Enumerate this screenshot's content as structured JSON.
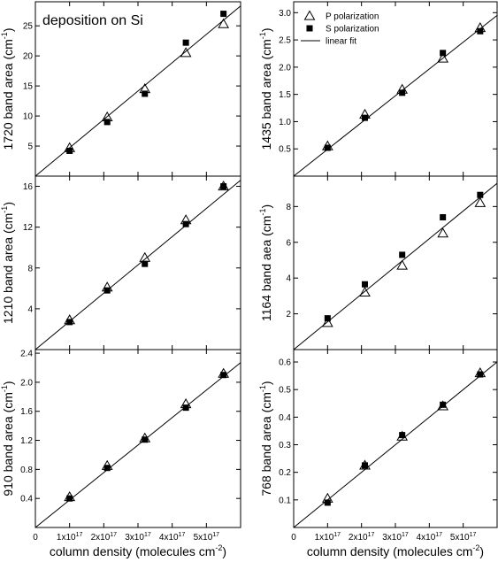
{
  "chart_data": [
    {
      "type": "scatter",
      "id": "p1720",
      "col": 0,
      "row": 0,
      "ylabel": "1720 band area (cm",
      "ylabel_sup": "-1",
      "ylabel_close": ")",
      "ylim": [
        0,
        29
      ],
      "xlim": [
        0,
        6e+17
      ],
      "yticks": [
        5,
        10,
        15,
        20,
        25
      ],
      "ytick_labels": [
        "5",
        "10",
        "15",
        "20",
        "25"
      ],
      "annotation": "deposition on Si",
      "fit": [
        [
          0,
          0
        ],
        [
          6e+17,
          28.3
        ]
      ],
      "series": [
        {
          "name": "P polarization",
          "marker": "triangle-open",
          "x": [
            1e+17,
            2.1e+17,
            3.2e+17,
            4.4e+17,
            5.5e+17
          ],
          "y": [
            4.7,
            9.8,
            14.5,
            20.5,
            25.3
          ]
        },
        {
          "name": "S polarization",
          "marker": "square-filled",
          "x": [
            1e+17,
            2.1e+17,
            3.2e+17,
            4.4e+17,
            5.5e+17
          ],
          "y": [
            4.2,
            9.0,
            13.7,
            22.2,
            27.0
          ]
        }
      ]
    },
    {
      "type": "scatter",
      "id": "p1435",
      "col": 1,
      "row": 0,
      "ylabel": "1435 band area (cm",
      "ylabel_sup": "-1",
      "ylabel_close": ")",
      "ylim": [
        0,
        3.2
      ],
      "xlim": [
        0,
        6e+17
      ],
      "yticks": [
        0.5,
        1.0,
        1.5,
        2.0,
        2.5,
        3.0
      ],
      "ytick_labels": [
        "0.5",
        "1.0",
        "1.5",
        "2.0",
        "2.5",
        "3.0"
      ],
      "legend": [
        {
          "label": "P polarization",
          "marker": "triangle-open"
        },
        {
          "label": "S polarization",
          "marker": "square-filled"
        },
        {
          "label": "linear fit",
          "marker": "line"
        }
      ],
      "fit": [
        [
          0,
          0
        ],
        [
          6e+17,
          2.95
        ]
      ],
      "series": [
        {
          "name": "P polarization",
          "marker": "triangle-open",
          "x": [
            1e+17,
            2.1e+17,
            3.2e+17,
            4.4e+17,
            5.5e+17
          ],
          "y": [
            0.55,
            1.13,
            1.59,
            2.16,
            2.72
          ]
        },
        {
          "name": "S polarization",
          "marker": "square-filled",
          "x": [
            1e+17,
            2.1e+17,
            3.2e+17,
            4.4e+17,
            5.5e+17
          ],
          "y": [
            0.52,
            1.07,
            1.53,
            2.26,
            2.66
          ]
        }
      ]
    },
    {
      "type": "scatter",
      "id": "p1210",
      "col": 0,
      "row": 1,
      "ylabel": "1210 band area (cm",
      "ylabel_sup": "-1",
      "ylabel_close": ")",
      "ylim": [
        0,
        17
      ],
      "xlim": [
        0,
        6e+17
      ],
      "yticks": [
        4,
        8,
        12,
        16
      ],
      "ytick_labels": [
        "4",
        "8",
        "12",
        "16"
      ],
      "fit": [
        [
          0,
          0
        ],
        [
          6e+17,
          16.6
        ]
      ],
      "series": [
        {
          "name": "P polarization",
          "marker": "triangle-open",
          "x": [
            1e+17,
            2.1e+17,
            3.2e+17,
            4.4e+17,
            5.5e+17
          ],
          "y": [
            2.9,
            6.1,
            9.0,
            12.7,
            16.0
          ]
        },
        {
          "name": "S polarization",
          "marker": "square-filled",
          "x": [
            1e+17,
            2.1e+17,
            3.2e+17,
            4.4e+17,
            5.5e+17
          ],
          "y": [
            2.7,
            5.8,
            8.4,
            12.3,
            16.0
          ]
        }
      ]
    },
    {
      "type": "scatter",
      "id": "p1164",
      "col": 1,
      "row": 1,
      "ylabel": "1164 band aea (cm",
      "ylabel_sup": "-1",
      "ylabel_close": ")",
      "ylim": [
        0,
        9.7
      ],
      "xlim": [
        0,
        6e+17
      ],
      "yticks": [
        2,
        4,
        6,
        8
      ],
      "ytick_labels": [
        "2",
        "4",
        "6",
        "8"
      ],
      "fit": [
        [
          0,
          0
        ],
        [
          6e+17,
          9.3
        ]
      ],
      "series": [
        {
          "name": "P polarization",
          "marker": "triangle-open",
          "x": [
            1e+17,
            2.1e+17,
            3.2e+17,
            4.4e+17,
            5.5e+17
          ],
          "y": [
            1.5,
            3.2,
            4.7,
            6.5,
            8.2
          ]
        },
        {
          "name": "S polarization",
          "marker": "square-filled",
          "x": [
            1e+17,
            2.1e+17,
            3.2e+17,
            4.4e+17,
            5.5e+17
          ],
          "y": [
            1.75,
            3.65,
            5.3,
            7.4,
            8.65
          ]
        }
      ]
    },
    {
      "type": "scatter",
      "id": "p910",
      "col": 0,
      "row": 2,
      "ylabel": "910 band area (cm",
      "ylabel_sup": "-1",
      "ylabel_close": ")",
      "ylim": [
        0,
        2.45
      ],
      "xlim": [
        0,
        6e+17
      ],
      "yticks": [
        0.4,
        0.8,
        1.2,
        1.6,
        2.0,
        2.4
      ],
      "ytick_labels": [
        "0.4",
        "0.8",
        "1.2",
        "1.6",
        "2.0",
        "2.4"
      ],
      "xticks": [
        0,
        1e+17,
        2e+17,
        3e+17,
        4e+17,
        5e+17
      ],
      "xtick_mant": [
        "0",
        "1x10",
        "2x10",
        "3x10",
        "4x10",
        "5x10"
      ],
      "xtick_exp": [
        "",
        "17",
        "17",
        "17",
        "17",
        "17"
      ],
      "xlabel": "column density (molecules cm",
      "xlabel_sup": "-2",
      "xlabel_close": ")",
      "fit": [
        [
          0,
          0
        ],
        [
          6e+17,
          2.27
        ]
      ],
      "series": [
        {
          "name": "P polarization",
          "marker": "triangle-open",
          "x": [
            1e+17,
            2.1e+17,
            3.2e+17,
            4.4e+17,
            5.5e+17
          ],
          "y": [
            0.42,
            0.85,
            1.23,
            1.7,
            2.12
          ]
        },
        {
          "name": "S polarization",
          "marker": "square-filled",
          "x": [
            1e+17,
            2.1e+17,
            3.2e+17,
            4.4e+17,
            5.5e+17
          ],
          "y": [
            0.4,
            0.82,
            1.21,
            1.65,
            2.1
          ]
        }
      ]
    },
    {
      "type": "scatter",
      "id": "p768",
      "col": 1,
      "row": 2,
      "ylabel": "768 band area (cm",
      "ylabel_sup": "-1",
      "ylabel_close": ")",
      "ylim": [
        0,
        0.645
      ],
      "xlim": [
        0,
        6e+17
      ],
      "yticks": [
        0.1,
        0.2,
        0.3,
        0.4,
        0.5,
        0.6
      ],
      "ytick_labels": [
        "0.1",
        "0.2",
        "0.3",
        "0.4",
        "0.5",
        "0.6"
      ],
      "xticks": [
        0,
        1e+17,
        2e+17,
        3e+17,
        4e+17,
        5e+17
      ],
      "xtick_mant": [
        "0",
        "1x10",
        "2x10",
        "3x10",
        "4x10",
        "5x10"
      ],
      "xtick_exp": [
        "",
        "17",
        "17",
        "17",
        "17",
        "17"
      ],
      "xlabel": "column density (molecules cm",
      "xlabel_sup": "-2",
      "xlabel_close": ")",
      "fit": [
        [
          0,
          0
        ],
        [
          6e+17,
          0.6
        ]
      ],
      "series": [
        {
          "name": "P polarization",
          "marker": "triangle-open",
          "x": [
            1e+17,
            2.1e+17,
            3.2e+17,
            4.4e+17,
            5.5e+17
          ],
          "y": [
            0.105,
            0.225,
            0.33,
            0.44,
            0.56
          ]
        },
        {
          "name": "S polarization",
          "marker": "square-filled",
          "x": [
            1e+17,
            2.1e+17,
            3.2e+17,
            4.4e+17,
            5.5e+17
          ],
          "y": [
            0.09,
            0.225,
            0.335,
            0.445,
            0.555
          ]
        }
      ]
    }
  ]
}
